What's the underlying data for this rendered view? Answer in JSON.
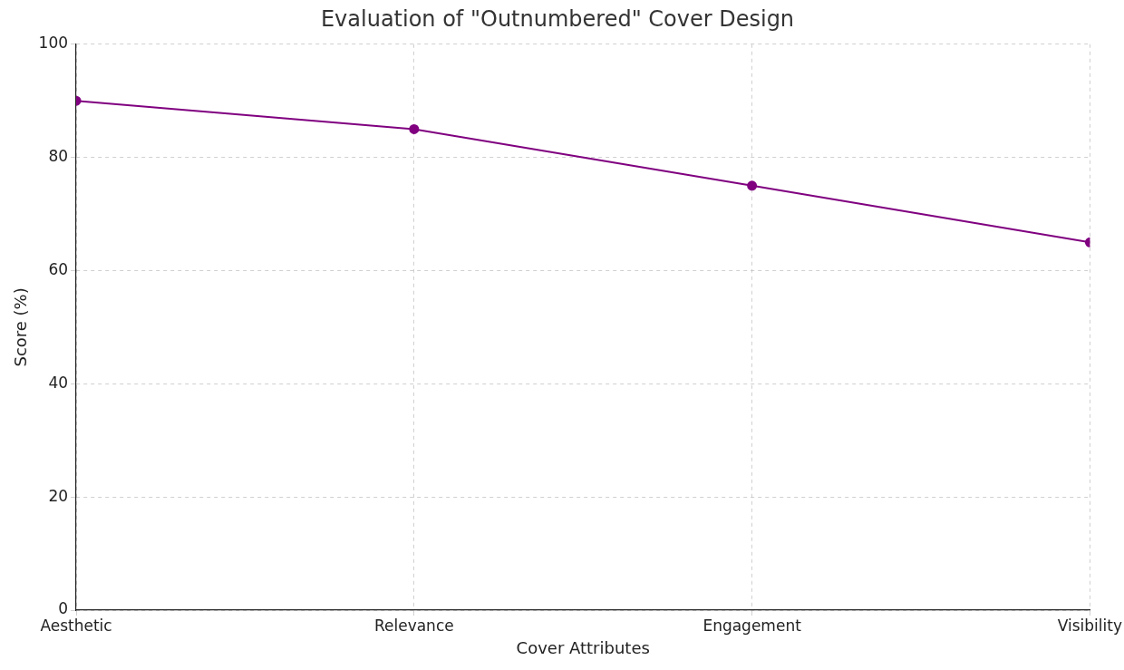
{
  "chart_data": {
    "type": "line",
    "title": "Evaluation of \"Outnumbered\" Cover Design",
    "x_label": "Cover Attributes",
    "y_label": "Score (%)",
    "categories": [
      "Aesthetic",
      "Relevance",
      "Engagement",
      "Visibility"
    ],
    "values": [
      90,
      85,
      75,
      65
    ],
    "color": "#800080",
    "marker": "circle",
    "line_style": "solid",
    "ylim": [
      0,
      100
    ],
    "yticks": [
      0,
      20,
      40,
      60,
      80,
      100
    ],
    "grid": true
  }
}
